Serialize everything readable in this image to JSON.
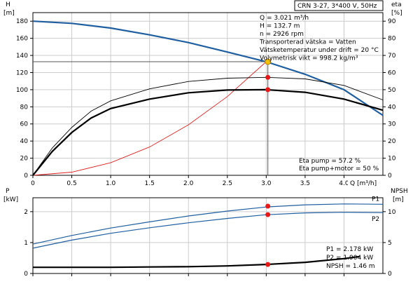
{
  "header": {
    "title": "CRN 3-27, 3*400 V, 50Hz"
  },
  "chart_data": [
    {
      "type": "line",
      "id": "head-efficiency",
      "x_axis": {
        "label": "Q [m³/h]",
        "range": [
          0,
          4.5
        ],
        "ticks": [
          "0",
          "0.5",
          "1.0",
          "1.5",
          "2.0",
          "2.5",
          "3.0",
          "3.5",
          "4.0"
        ],
        "tick_values": [
          0,
          0.5,
          1.0,
          1.5,
          2.0,
          2.5,
          3.0,
          3.5,
          4.0
        ]
      },
      "y_left": {
        "label": "H",
        "unit": "[m]",
        "range": [
          0,
          190
        ],
        "ticks": [
          "0",
          "20",
          "40",
          "60",
          "80",
          "100",
          "120",
          "140",
          "160",
          "180"
        ],
        "tick_values": [
          0,
          20,
          40,
          60,
          80,
          100,
          120,
          140,
          160,
          180
        ]
      },
      "y_right": {
        "label": "eta",
        "unit": "[%]",
        "range": [
          0,
          95
        ],
        "ticks": [
          "0",
          "10",
          "20",
          "30",
          "40",
          "50",
          "60",
          "70",
          "80",
          "90"
        ],
        "tick_values": [
          0,
          10,
          20,
          30,
          40,
          50,
          60,
          70,
          80,
          90
        ]
      },
      "grid": true,
      "series": [
        {
          "key": "H_curve",
          "axis": "left",
          "color": "#1f5fa0",
          "width": 2.2,
          "x": [
            0,
            0.5,
            1.0,
            1.5,
            2.0,
            2.5,
            3.0,
            3.5,
            4.0,
            4.5
          ],
          "y": [
            180,
            177.5,
            172,
            164,
            155,
            144,
            132.7,
            118,
            100,
            70
          ]
        },
        {
          "key": "system_curve",
          "axis": "left",
          "color": "#e02020",
          "width": 0.9,
          "x": [
            0,
            0.5,
            1.0,
            1.5,
            2.0,
            2.5,
            3.0
          ],
          "y": [
            0,
            3.7,
            14.7,
            33.1,
            59,
            92,
            132.7
          ]
        },
        {
          "key": "eta_pump_motor",
          "axis": "right",
          "color": "#000000",
          "width": 2.2,
          "x": [
            0,
            0.25,
            0.5,
            0.75,
            1.0,
            1.5,
            2.0,
            2.5,
            3.0,
            3.5,
            4.0,
            4.5
          ],
          "y": [
            0,
            14,
            25,
            33.5,
            39,
            44.5,
            48.2,
            49.8,
            50,
            48.5,
            44.5,
            38
          ]
        },
        {
          "key": "eta_pump",
          "axis": "right",
          "color": "#000000",
          "width": 0.9,
          "x": [
            0,
            0.25,
            0.5,
            0.75,
            1.0,
            1.5,
            2.0,
            2.5,
            3.0,
            3.5,
            4.0,
            4.5
          ],
          "y": [
            0,
            16,
            28,
            37.5,
            43.5,
            50.5,
            54.8,
            56.7,
            57.2,
            56.3,
            52.5,
            44
          ]
        }
      ],
      "guide_lines": {
        "h": 132.7,
        "q": 3.021
      },
      "markers": [
        {
          "x": 3.021,
          "y": 132.7,
          "axis": "left",
          "fill": "#f2c200",
          "stroke": "#b07a00",
          "r": 4
        },
        {
          "x": 3.021,
          "y": 57.2,
          "axis": "right",
          "fill": "#e81818",
          "stroke": "#e81818",
          "r": 3
        },
        {
          "x": 3.021,
          "y": 50,
          "axis": "right",
          "fill": "#e81818",
          "stroke": "#e81818",
          "r": 3
        }
      ],
      "annotations": {
        "top": [
          "Q = 3.021 m³/h",
          "H = 132.7 m",
          "n = 2926 rpm",
          "Transporterad vätska = Vatten",
          "Vätsketemperatur under drift = 20 °C",
          "Volymetrisk vikt = 998.2 kg/m³"
        ],
        "bottom": [
          "Eta pump = 57.2 %",
          "Eta pump+motor = 50 %"
        ]
      }
    },
    {
      "type": "line",
      "id": "power-npsh",
      "x_axis": {
        "range": [
          0,
          4.5
        ]
      },
      "y_left": {
        "label": "P",
        "unit": "[kW]",
        "range": [
          0,
          2.45
        ],
        "ticks": [
          "0",
          "1",
          "2"
        ],
        "tick_values": [
          0,
          1,
          2
        ]
      },
      "y_right": {
        "label": "NPSH",
        "unit": "[m]",
        "range": [
          0,
          12.25
        ],
        "ticks": [
          "0",
          "5",
          "10"
        ],
        "tick_values": [
          0,
          5,
          10
        ]
      },
      "grid": true,
      "series": [
        {
          "key": "P1",
          "name": "P1",
          "axis": "left",
          "color": "#1f5fa0",
          "x": [
            0,
            0.5,
            1.0,
            1.5,
            2.0,
            2.5,
            3.0,
            3.5,
            4.0,
            4.5
          ],
          "y": [
            0.95,
            1.23,
            1.47,
            1.67,
            1.86,
            2.02,
            2.15,
            2.22,
            2.25,
            2.24
          ]
        },
        {
          "key": "P2",
          "name": "P2",
          "axis": "left",
          "color": "#1f5fa0",
          "x": [
            0,
            0.5,
            1.0,
            1.5,
            2.0,
            2.5,
            3.0,
            3.5,
            4.0,
            4.5
          ],
          "y": [
            0.82,
            1.08,
            1.3,
            1.48,
            1.64,
            1.78,
            1.9,
            1.96,
            1.98,
            1.97
          ]
        },
        {
          "key": "NPSH",
          "axis": "right",
          "color": "#000000",
          "x": [
            0,
            0.5,
            1.0,
            1.5,
            2.0,
            2.5,
            3.0,
            3.5,
            4.0,
            4.2
          ],
          "y": [
            1.0,
            1.0,
            1.0,
            1.05,
            1.1,
            1.22,
            1.46,
            1.8,
            2.4,
            2.75
          ]
        }
      ],
      "markers": [
        {
          "x": 3.021,
          "y": 2.178,
          "axis": "left",
          "fill": "#e81818",
          "stroke": "#e81818",
          "r": 3
        },
        {
          "x": 3.021,
          "y": 1.904,
          "axis": "left",
          "fill": "#e81818",
          "stroke": "#e81818",
          "r": 3
        },
        {
          "x": 3.021,
          "y": 1.46,
          "axis": "right",
          "fill": "#e81818",
          "stroke": "#e81818",
          "r": 3
        }
      ],
      "annotations": [
        "P1 = 2.178 kW",
        "P2 = 1.904 kW",
        "NPSH = 1.46 m"
      ]
    }
  ]
}
